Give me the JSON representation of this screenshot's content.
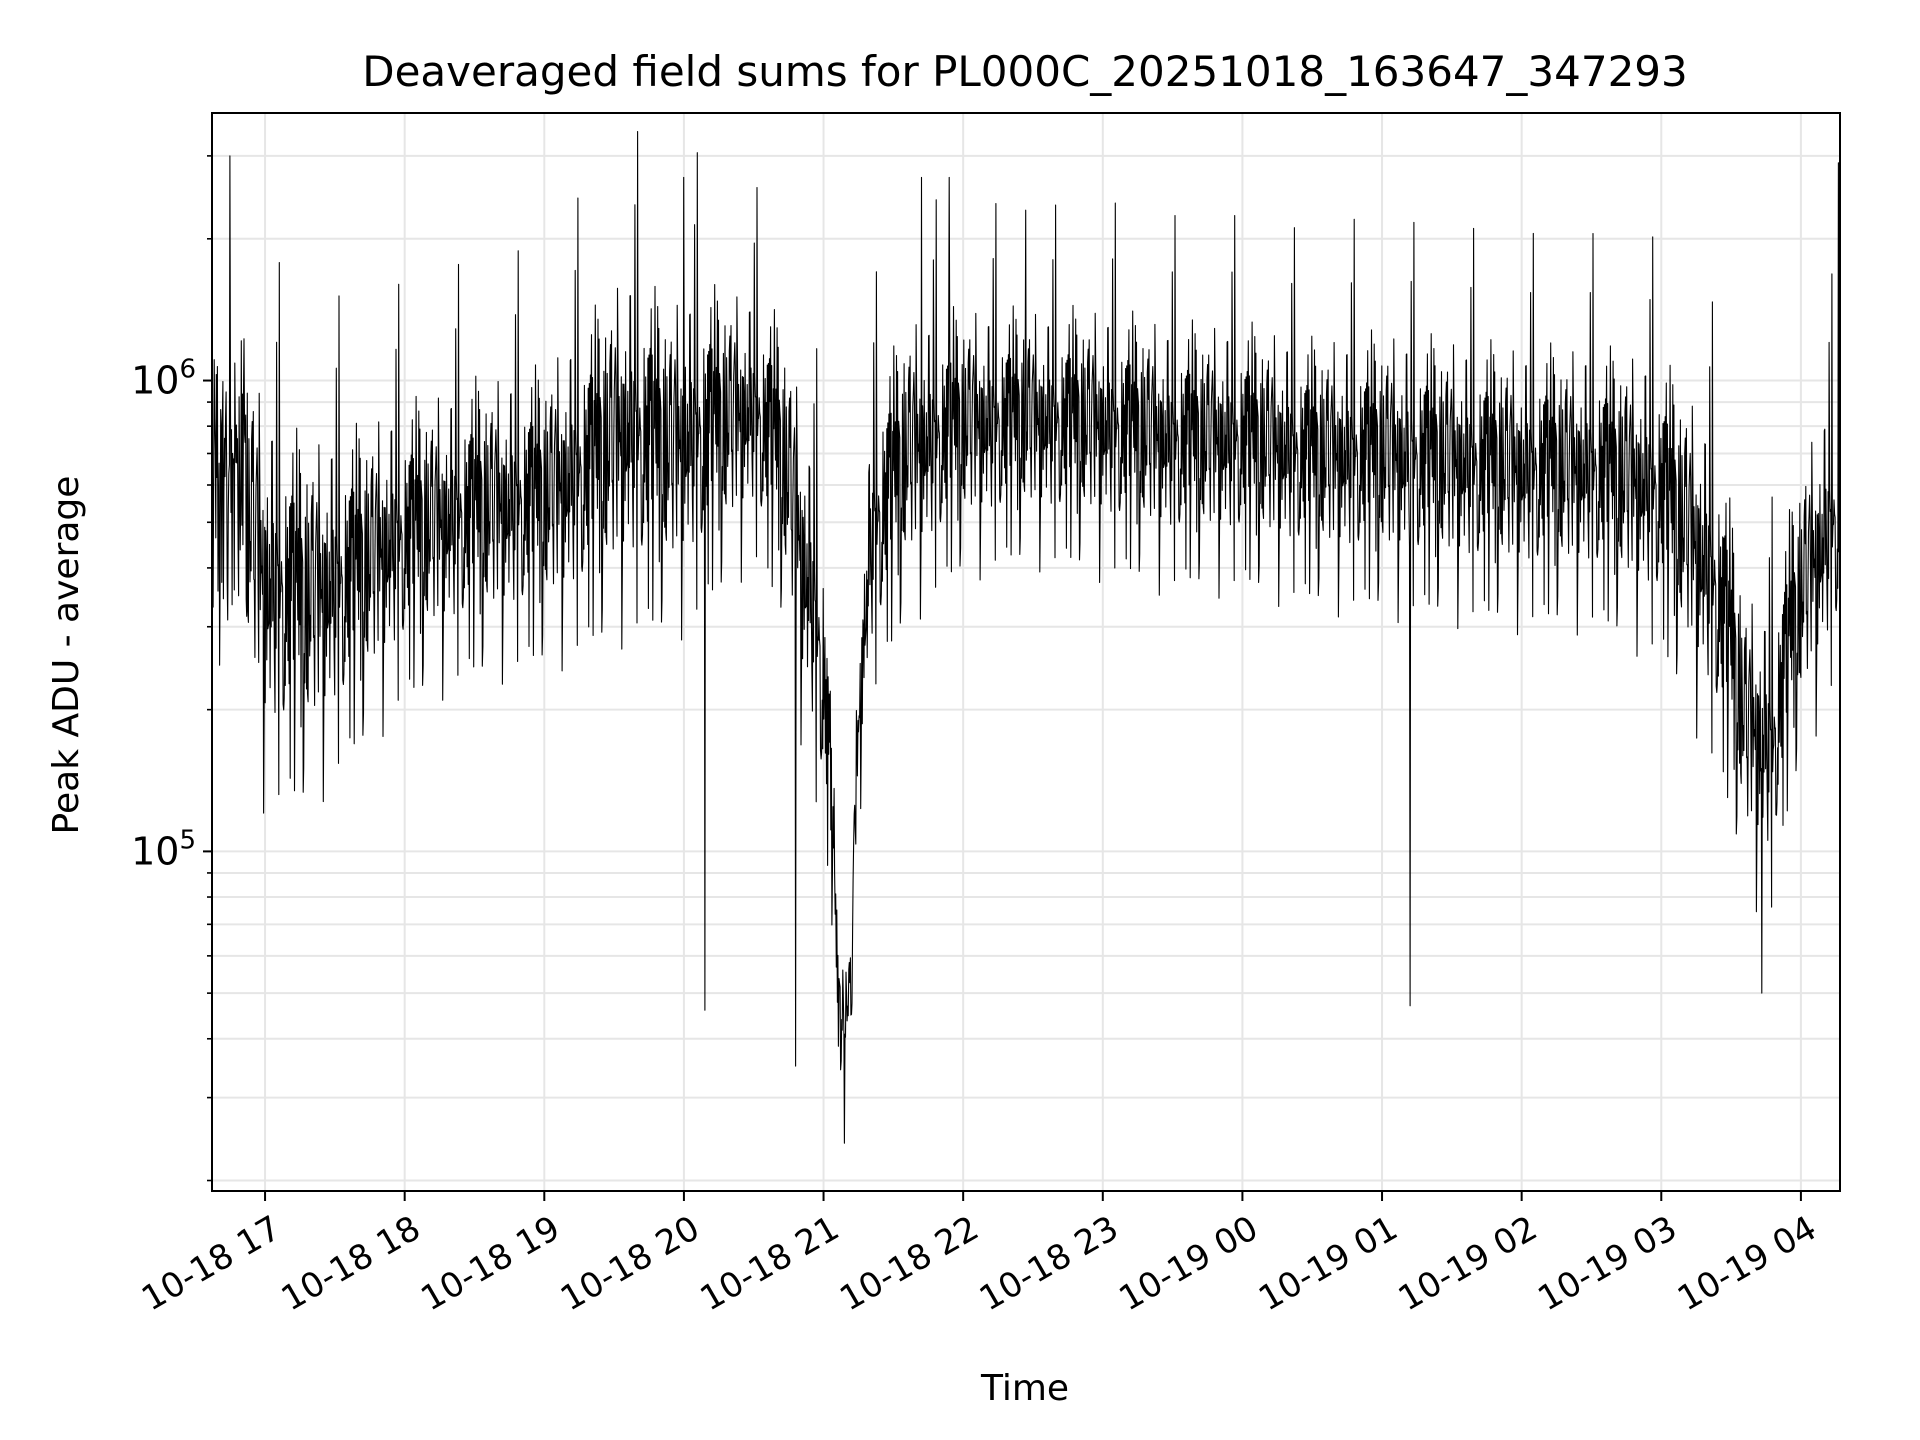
{
  "chart_data": {
    "type": "line",
    "title": "Deaveraged field sums for PL000C_20251018_163647_347293",
    "xlabel": "Time",
    "ylabel": "Peak ADU - average",
    "yscale": "log",
    "ylim": [
      19000,
      3700000
    ],
    "xlim_hours": [
      16.62,
      28.28
    ],
    "grid": true,
    "line_color": "#000000",
    "x_ticks": [
      {
        "hour": 17,
        "label": "10-18 17"
      },
      {
        "hour": 18,
        "label": "10-18 18"
      },
      {
        "hour": 19,
        "label": "10-18 19"
      },
      {
        "hour": 20,
        "label": "10-18 20"
      },
      {
        "hour": 21,
        "label": "10-18 21"
      },
      {
        "hour": 22,
        "label": "10-18 22"
      },
      {
        "hour": 23,
        "label": "10-18 23"
      },
      {
        "hour": 24,
        "label": "10-19 00"
      },
      {
        "hour": 25,
        "label": "10-19 01"
      },
      {
        "hour": 26,
        "label": "10-19 02"
      },
      {
        "hour": 27,
        "label": "10-19 03"
      },
      {
        "hour": 28,
        "label": "10-19 04"
      }
    ],
    "y_major_ticks": [
      {
        "value": 100000,
        "base": "10",
        "exp": "5"
      },
      {
        "value": 1000000,
        "base": "10",
        "exp": "6"
      }
    ],
    "y_minor_ticks": [
      20000,
      30000,
      40000,
      50000,
      60000,
      70000,
      80000,
      90000,
      200000,
      300000,
      400000,
      500000,
      600000,
      700000,
      800000,
      900000,
      2000000,
      3000000
    ],
    "series": [
      {
        "name": "Peak ADU - average",
        "envelope": {
          "hours": [
            16.62,
            16.8,
            17.0,
            17.3,
            17.6,
            18.0,
            18.5,
            19.0,
            19.3,
            19.6,
            19.9,
            20.1,
            20.3,
            20.5,
            20.7,
            20.85,
            21.0,
            21.1,
            21.2,
            21.35,
            21.6,
            22.0,
            22.5,
            23.0,
            23.5,
            24.0,
            24.5,
            25.0,
            25.5,
            26.0,
            26.5,
            27.0,
            27.4,
            27.6,
            27.8,
            28.0,
            28.28
          ],
          "center": [
            650000,
            500000,
            300000,
            280000,
            320000,
            400000,
            450000,
            480000,
            550000,
            650000,
            600000,
            650000,
            700000,
            750000,
            600000,
            350000,
            200000,
            45000,
            45000,
            400000,
            600000,
            700000,
            720000,
            700000,
            650000,
            650000,
            600000,
            600000,
            580000,
            560000,
            560000,
            500000,
            300000,
            160000,
            140000,
            300000,
            450000
          ],
          "spread": [
            0.45,
            0.55,
            0.6,
            0.55,
            0.5,
            0.45,
            0.45,
            0.45,
            0.5,
            0.55,
            0.5,
            0.5,
            0.45,
            0.4,
            0.45,
            0.5,
            0.5,
            0.2,
            0.2,
            0.45,
            0.45,
            0.4,
            0.38,
            0.4,
            0.4,
            0.4,
            0.4,
            0.42,
            0.42,
            0.42,
            0.42,
            0.45,
            0.5,
            0.45,
            0.45,
            0.45,
            0.45
          ]
        },
        "samples": 3000,
        "notable_points": [
          {
            "hour": 16.75,
            "value": 3000000
          },
          {
            "hour": 20.0,
            "value": 2700000
          },
          {
            "hour": 21.7,
            "value": 2700000
          },
          {
            "hour": 21.9,
            "value": 2700000
          },
          {
            "hour": 22.45,
            "value": 2300000
          },
          {
            "hour": 24.8,
            "value": 2200000
          },
          {
            "hour": 28.27,
            "value": 2900000
          },
          {
            "hour": 21.15,
            "value": 24000
          },
          {
            "hour": 20.15,
            "value": 46000
          },
          {
            "hour": 25.2,
            "value": 47000
          },
          {
            "hour": 27.72,
            "value": 50000
          },
          {
            "hour": 20.8,
            "value": 35000
          }
        ]
      }
    ]
  }
}
